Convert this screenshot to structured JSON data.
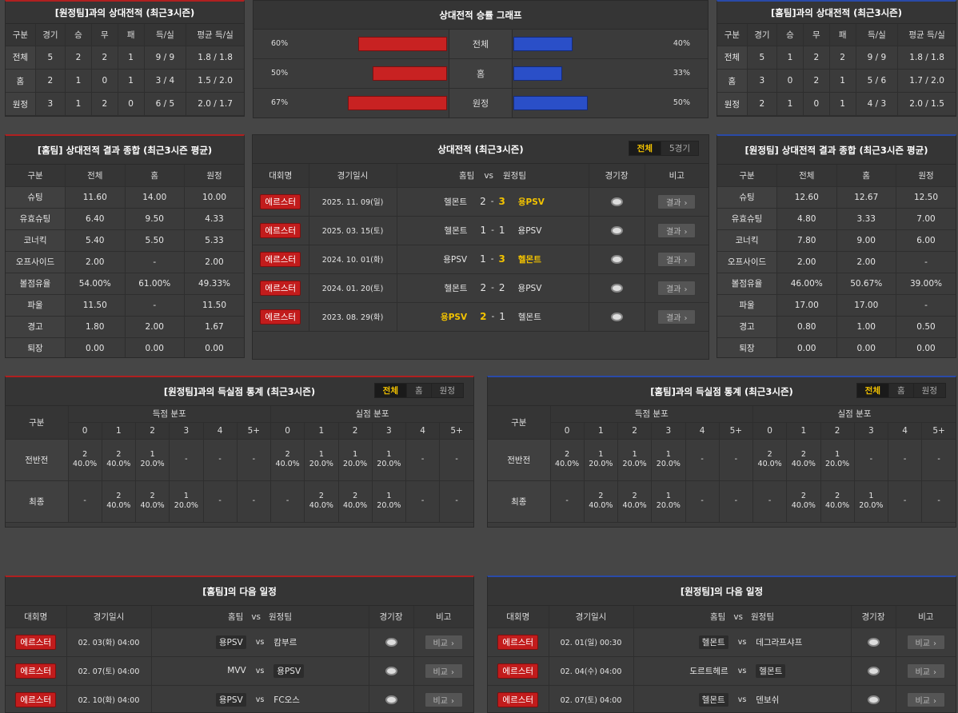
{
  "h2h_away": {
    "title": "[원정팀]과의 상대전적 (최근3시즌)",
    "headers": [
      "구분",
      "경기",
      "승",
      "무",
      "패",
      "득/실",
      "평균 득/실"
    ],
    "rows": [
      [
        "전체",
        "5",
        "2",
        "2",
        "1",
        "9 / 9",
        "1.8 / 1.8"
      ],
      [
        "홈",
        "2",
        "1",
        "0",
        "1",
        "3 / 4",
        "1.5 / 2.0"
      ],
      [
        "원정",
        "3",
        "1",
        "2",
        "0",
        "6 / 5",
        "2.0 / 1.7"
      ]
    ]
  },
  "h2h_graph": {
    "title": "상대전적 승률 그래프",
    "rows": [
      {
        "label": "전체",
        "left": "60%",
        "right": "40%",
        "left_pct": 60,
        "right_pct": 40
      },
      {
        "label": "홈",
        "left": "50%",
        "right": "33%",
        "left_pct": 50,
        "right_pct": 33
      },
      {
        "label": "원정",
        "left": "67%",
        "right": "50%",
        "left_pct": 67,
        "right_pct": 50
      }
    ]
  },
  "h2h_home": {
    "title": "[홈팀]과의 상대전적 (최근3시즌)",
    "headers": [
      "구분",
      "경기",
      "승",
      "무",
      "패",
      "득/실",
      "평균 득/실"
    ],
    "rows": [
      [
        "전체",
        "5",
        "1",
        "2",
        "2",
        "9 / 9",
        "1.8 / 1.8"
      ],
      [
        "홈",
        "3",
        "0",
        "2",
        "1",
        "5 / 6",
        "1.7 / 2.0"
      ],
      [
        "원정",
        "2",
        "1",
        "0",
        "1",
        "4 / 3",
        "2.0 / 1.5"
      ]
    ]
  },
  "summary_home": {
    "title": "[홈팀] 상대전적 결과 종합 (최근3시즌 평균)",
    "headers": [
      "구분",
      "전체",
      "홈",
      "원정"
    ],
    "rows": [
      [
        "슈팅",
        "11.60",
        "14.00",
        "10.00"
      ],
      [
        "유효슈팅",
        "6.40",
        "9.50",
        "4.33"
      ],
      [
        "코너킥",
        "5.40",
        "5.50",
        "5.33"
      ],
      [
        "오프사이드",
        "2.00",
        "-",
        "2.00"
      ],
      [
        "볼점유율",
        "54.00%",
        "61.00%",
        "49.33%"
      ],
      [
        "파울",
        "11.50",
        "-",
        "11.50"
      ],
      [
        "경고",
        "1.80",
        "2.00",
        "1.67"
      ],
      [
        "퇴장",
        "0.00",
        "0.00",
        "0.00"
      ]
    ]
  },
  "h2h_list": {
    "title": "상대전적 (최근3시즌)",
    "tabs": [
      "전체",
      "5경기"
    ],
    "headers": [
      "대회명",
      "경기일시",
      "홈팀",
      "vs",
      "원정팀",
      "경기장",
      "비고"
    ],
    "button_label": "결과",
    "matches": [
      {
        "league": "에르스터",
        "date": "2025. 11. 09(일)",
        "home": "헬몬트",
        "hs": "2",
        "as": "3",
        "away": "용PSV",
        "winner": "away"
      },
      {
        "league": "에르스터",
        "date": "2025. 03. 15(토)",
        "home": "헬몬트",
        "hs": "1",
        "as": "1",
        "away": "용PSV",
        "winner": "none"
      },
      {
        "league": "에르스터",
        "date": "2024. 10. 01(화)",
        "home": "용PSV",
        "hs": "1",
        "as": "3",
        "away": "헬몬트",
        "winner": "away"
      },
      {
        "league": "에르스터",
        "date": "2024. 01. 20(토)",
        "home": "헬몬트",
        "hs": "2",
        "as": "2",
        "away": "용PSV",
        "winner": "none"
      },
      {
        "league": "에르스터",
        "date": "2023. 08. 29(화)",
        "home": "용PSV",
        "hs": "2",
        "as": "1",
        "away": "헬몬트",
        "winner": "home"
      }
    ]
  },
  "summary_away": {
    "title": "[원정팀] 상대전적 결과 종합 (최근3시즌 평균)",
    "headers": [
      "구분",
      "전체",
      "홈",
      "원정"
    ],
    "rows": [
      [
        "슈팅",
        "12.60",
        "12.67",
        "12.50"
      ],
      [
        "유효슈팅",
        "4.80",
        "3.33",
        "7.00"
      ],
      [
        "코너킥",
        "7.80",
        "9.00",
        "6.00"
      ],
      [
        "오프사이드",
        "2.00",
        "2.00",
        "-"
      ],
      [
        "볼점유율",
        "46.00%",
        "50.67%",
        "39.00%"
      ],
      [
        "파울",
        "17.00",
        "17.00",
        "-"
      ],
      [
        "경고",
        "0.80",
        "1.00",
        "0.50"
      ],
      [
        "퇴장",
        "0.00",
        "0.00",
        "0.00"
      ]
    ]
  },
  "goals_away": {
    "title": "[원정팀]과의 득실점 통계 (최근3시즌)",
    "tabs": [
      "전체",
      "홈",
      "원정"
    ],
    "col_label": "구분",
    "scored_label": "득점 분포",
    "conceded_label": "실점 분포",
    "buckets": [
      "0",
      "1",
      "2",
      "3",
      "4",
      "5+"
    ],
    "rows": [
      {
        "label": "전반전",
        "scored": [
          [
            "2",
            "40.0%"
          ],
          [
            "2",
            "40.0%"
          ],
          [
            "1",
            "20.0%"
          ],
          [
            "-",
            ""
          ],
          [
            "-",
            ""
          ],
          [
            "-",
            ""
          ]
        ],
        "conceded": [
          [
            "2",
            "40.0%"
          ],
          [
            "1",
            "20.0%"
          ],
          [
            "1",
            "20.0%"
          ],
          [
            "1",
            "20.0%"
          ],
          [
            "-",
            ""
          ],
          [
            "-",
            ""
          ]
        ]
      },
      {
        "label": "최종",
        "scored": [
          [
            "-",
            ""
          ],
          [
            "2",
            "40.0%"
          ],
          [
            "2",
            "40.0%"
          ],
          [
            "1",
            "20.0%"
          ],
          [
            "-",
            ""
          ],
          [
            "-",
            ""
          ]
        ],
        "conceded": [
          [
            "-",
            ""
          ],
          [
            "2",
            "40.0%"
          ],
          [
            "2",
            "40.0%"
          ],
          [
            "1",
            "20.0%"
          ],
          [
            "-",
            ""
          ],
          [
            "-",
            ""
          ]
        ]
      }
    ]
  },
  "goals_home": {
    "title": "[홈팀]과의 득실점 통계 (최근3시즌)",
    "tabs": [
      "전체",
      "홈",
      "원정"
    ],
    "col_label": "구분",
    "scored_label": "득점 분포",
    "conceded_label": "실점 분포",
    "buckets": [
      "0",
      "1",
      "2",
      "3",
      "4",
      "5+"
    ],
    "rows": [
      {
        "label": "전반전",
        "scored": [
          [
            "2",
            "40.0%"
          ],
          [
            "1",
            "20.0%"
          ],
          [
            "1",
            "20.0%"
          ],
          [
            "1",
            "20.0%"
          ],
          [
            "-",
            ""
          ],
          [
            "-",
            ""
          ]
        ],
        "conceded": [
          [
            "2",
            "40.0%"
          ],
          [
            "2",
            "40.0%"
          ],
          [
            "1",
            "20.0%"
          ],
          [
            "-",
            ""
          ],
          [
            "-",
            ""
          ],
          [
            "-",
            ""
          ]
        ]
      },
      {
        "label": "최종",
        "scored": [
          [
            "-",
            ""
          ],
          [
            "2",
            "40.0%"
          ],
          [
            "2",
            "40.0%"
          ],
          [
            "1",
            "20.0%"
          ],
          [
            "-",
            ""
          ],
          [
            "-",
            ""
          ]
        ],
        "conceded": [
          [
            "-",
            ""
          ],
          [
            "2",
            "40.0%"
          ],
          [
            "2",
            "40.0%"
          ],
          [
            "1",
            "20.0%"
          ],
          [
            "-",
            ""
          ],
          [
            "-",
            ""
          ]
        ]
      }
    ]
  },
  "next_home": {
    "title": "[홈팀]의 다음 일정",
    "headers": [
      "대회명",
      "경기일시",
      "홈팀",
      "vs",
      "원정팀",
      "경기장",
      "비고"
    ],
    "button_label": "비교",
    "matches": [
      {
        "league": "에르스터",
        "date": "02. 03(화) 04:00",
        "home": "용PSV",
        "away": "캄부르",
        "hl": "home"
      },
      {
        "league": "에르스터",
        "date": "02. 07(토) 04:00",
        "home": "MVV",
        "away": "용PSV",
        "hl": "away"
      },
      {
        "league": "에르스터",
        "date": "02. 10(화) 04:00",
        "home": "용PSV",
        "away": "FC오스",
        "hl": "home"
      }
    ]
  },
  "next_away": {
    "title": "[원정팀]의 다음 일정",
    "headers": [
      "대회명",
      "경기일시",
      "홈팀",
      "vs",
      "원정팀",
      "경기장",
      "비고"
    ],
    "button_label": "비교",
    "matches": [
      {
        "league": "에르스터",
        "date": "02. 01(일) 00:30",
        "home": "헬몬트",
        "away": "데그라프샤프",
        "hl": "home"
      },
      {
        "league": "에르스터",
        "date": "02. 04(수) 04:00",
        "home": "도르트헤르",
        "away": "헬몬트",
        "hl": "away"
      },
      {
        "league": "에르스터",
        "date": "02. 07(토) 04:00",
        "home": "헬몬트",
        "away": "덴보쉬",
        "hl": "home"
      }
    ]
  }
}
